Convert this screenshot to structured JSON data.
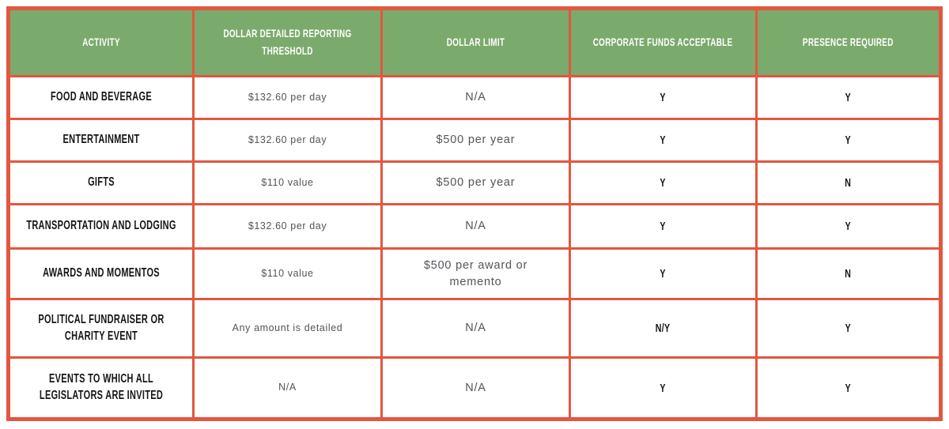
{
  "colors": {
    "header_background": "#7baa6d",
    "table_border": "#e2573f",
    "header_text": "#ffffff",
    "label_text": "#141414",
    "value_text": "#53545a",
    "page_background": "#ffffff"
  },
  "table": {
    "headers": {
      "activity": "ACTIVITY",
      "threshold": "DOLLAR DETAILED REPORTING\nTHRESHOLD",
      "limit": "DOLLAR LIMIT",
      "corporate_funds": "CORPORATE FUNDS ACCEPTABLE",
      "presence_required": "PRESENCE REQUIRED"
    },
    "rows": [
      {
        "activity": "FOOD AND BEVERAGE",
        "threshold": "$132.60 per day",
        "limit": "N/A",
        "corporate_funds": "Y",
        "presence_required": "Y"
      },
      {
        "activity": "ENTERTAINMENT",
        "threshold": "$132.60 per day",
        "limit": "$500 per year",
        "corporate_funds": "Y",
        "presence_required": "Y"
      },
      {
        "activity": "GIFTS",
        "threshold": "$110 value",
        "limit": "$500 per year",
        "corporate_funds": "Y",
        "presence_required": "N"
      },
      {
        "activity": "TRANSPORTATION AND LODGING",
        "threshold": "$132.60 per day",
        "limit": "N/A",
        "corporate_funds": "Y",
        "presence_required": "Y"
      },
      {
        "activity": "AWARDS AND MOMENTOS",
        "threshold": "$110 value",
        "limit": "$500 per award or\nmemento",
        "corporate_funds": "Y",
        "presence_required": "N"
      },
      {
        "activity": "POLITICAL FUNDRAISER OR\nCHARITY EVENT",
        "threshold": "Any amount is detailed",
        "limit": "N/A",
        "corporate_funds": "N/Y",
        "presence_required": "Y"
      },
      {
        "activity": "EVENTS TO WHICH ALL\nLEGISLATORS ARE INVITED",
        "threshold": "N/A",
        "limit": "N/A",
        "corporate_funds": "Y",
        "presence_required": "Y"
      }
    ]
  },
  "chart_data": {
    "type": "table",
    "columns": [
      "ACTIVITY",
      "DOLLAR DETAILED REPORTING THRESHOLD",
      "DOLLAR LIMIT",
      "CORPORATE FUNDS ACCEPTABLE",
      "PRESENCE REQUIRED"
    ],
    "rows": [
      [
        "FOOD AND BEVERAGE",
        "$132.60 per day",
        "N/A",
        "Y",
        "Y"
      ],
      [
        "ENTERTAINMENT",
        "$132.60 per day",
        "$500 per year",
        "Y",
        "Y"
      ],
      [
        "GIFTS",
        "$110 value",
        "$500 per year",
        "Y",
        "N"
      ],
      [
        "TRANSPORTATION AND LODGING",
        "$132.60 per day",
        "N/A",
        "Y",
        "Y"
      ],
      [
        "AWARDS AND MOMENTOS",
        "$110 value",
        "$500 per award or memento",
        "Y",
        "N"
      ],
      [
        "POLITICAL FUNDRAISER OR CHARITY EVENT",
        "Any amount is detailed",
        "N/A",
        "N/Y",
        "Y"
      ],
      [
        "EVENTS TO WHICH ALL LEGISLATORS ARE INVITED",
        "N/A",
        "N/A",
        "Y",
        "Y"
      ]
    ]
  }
}
